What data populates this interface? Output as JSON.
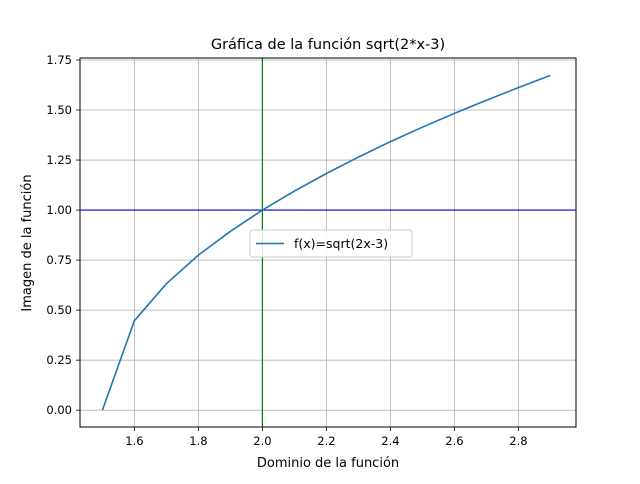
{
  "chart_data": {
    "type": "line",
    "title": "Gráfica de la función sqrt(2*x-3)",
    "xlabel": "Dominio de la función",
    "ylabel": "Imagen de la función",
    "xlim": [
      1.43,
      2.98
    ],
    "ylim": [
      -0.084,
      1.76
    ],
    "x_ticks": [
      "1.6",
      "1.8",
      "2.0",
      "2.2",
      "2.4",
      "2.6",
      "2.8"
    ],
    "y_ticks": [
      "0.00",
      "0.25",
      "0.50",
      "0.75",
      "1.00",
      "1.25",
      "1.50",
      "1.75"
    ],
    "grid": true,
    "legend_position": "center-right",
    "series": [
      {
        "name": "f(x)=sqrt(2x-3)",
        "color": "#1f77b4",
        "x": [
          1.5,
          1.6,
          1.7,
          1.8,
          1.9,
          2.0,
          2.1,
          2.2,
          2.3,
          2.4,
          2.5,
          2.6,
          2.7,
          2.8,
          2.9
        ],
        "y": [
          0.0,
          0.447,
          0.632,
          0.775,
          0.894,
          1.0,
          1.095,
          1.183,
          1.265,
          1.342,
          1.414,
          1.483,
          1.549,
          1.612,
          1.673
        ]
      }
    ],
    "reference_lines": [
      {
        "orientation": "horizontal",
        "value": 1.0,
        "color": "#0000cc"
      },
      {
        "orientation": "vertical",
        "value": 2.0,
        "color": "#008000"
      }
    ]
  }
}
